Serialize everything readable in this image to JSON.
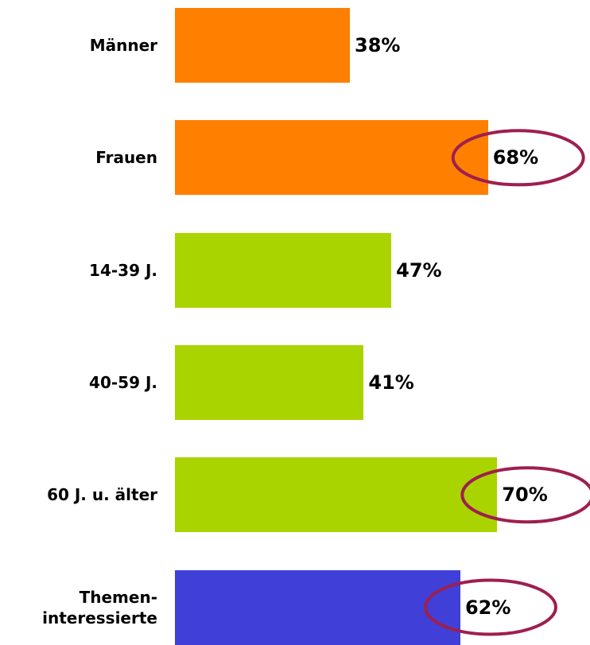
{
  "chart_data": {
    "type": "bar",
    "orientation": "horizontal",
    "categories": [
      "Männer",
      "Frauen",
      "14-39 J.",
      "40-59 J.",
      "60 J. u. älter",
      "Themen-\ninteressierte"
    ],
    "values": [
      38,
      68,
      47,
      41,
      70,
      62
    ],
    "value_labels": [
      "38%",
      "68%",
      "47%",
      "41%",
      "70%",
      "62%"
    ],
    "colors": [
      "#ff7f00",
      "#ff7f00",
      "#aad400",
      "#aad400",
      "#aad400",
      "#4040d8"
    ],
    "highlighted": [
      false,
      true,
      false,
      false,
      true,
      true
    ],
    "highlight_color": "#9e1f4f"
  }
}
